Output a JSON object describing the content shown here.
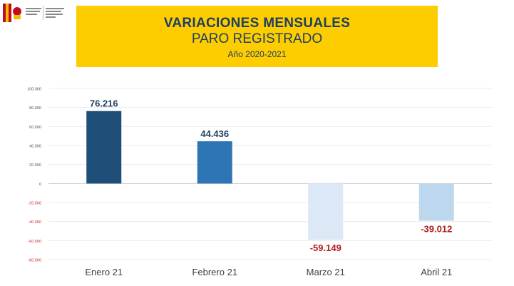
{
  "header": {
    "ministry_logo": "gobierno-de-espana-coat-of-arms",
    "ministry_text": "MINISTERIO DE TRABAJO Y ECONOMÍA SOCIAL",
    "title": "VARIACIONES MENSUALES",
    "subtitle": "PARO REGISTRADO",
    "years": "Año 2020-2021"
  },
  "colors": {
    "banner_bg": "#fdcd00",
    "title_text": "#1f3f63",
    "positive_label": "#1f3f63",
    "negative_label": "#b01e1e",
    "negative_tick": "#c62828"
  },
  "chart_data": {
    "type": "bar",
    "title": "",
    "xlabel": "",
    "ylabel": "",
    "categories": [
      "Enero 21",
      "Febrero 21",
      "Marzo 21",
      "Abril 21"
    ],
    "values": [
      76216,
      44436,
      -59149,
      -39012
    ],
    "value_labels": [
      "76.216",
      "44.436",
      "-59.149",
      "-39.012"
    ],
    "bar_colors": [
      "#1f4e79",
      "#2e75b6",
      "#dce8f5",
      "#bdd7ee"
    ],
    "ylim": [
      -80000,
      100000
    ],
    "yticks": [
      100000,
      80000,
      60000,
      40000,
      20000,
      0,
      -20000,
      -40000,
      -60000,
      -80000
    ],
    "ytick_labels": [
      "100.000",
      "80.000",
      "60.000",
      "40.000",
      "20.000",
      "0",
      "-20.000",
      "-40.000",
      "-60.000",
      "-80.000"
    ],
    "grid": true,
    "legend": "none"
  }
}
